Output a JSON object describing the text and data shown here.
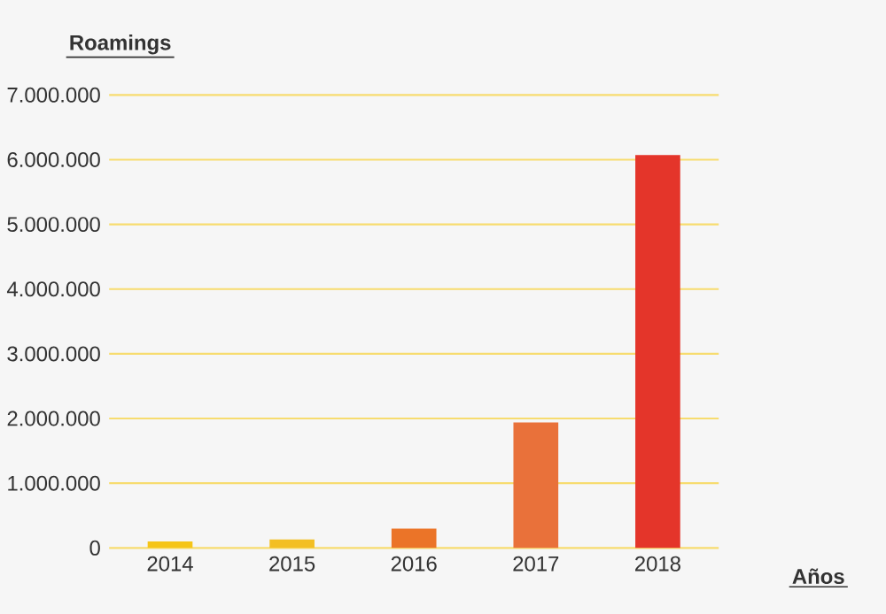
{
  "chart_data": {
    "type": "bar",
    "ylabel": "Roamings",
    "xlabel": "Años",
    "categories": [
      "2014",
      "2015",
      "2016",
      "2017",
      "2018"
    ],
    "values": [
      100000,
      130000,
      300000,
      1940000,
      6070000
    ],
    "colors": [
      "#f5c518",
      "#f3bf22",
      "#eb7428",
      "#e9713a",
      "#e4352a"
    ],
    "ylim": [
      0,
      7000000
    ],
    "yticks": [
      0,
      {
        "value": 1000000,
        "label": "1.000.000"
      },
      {
        "value": 2000000,
        "label": "2.000.000"
      },
      {
        "value": 3000000,
        "label": "3.000.000"
      },
      {
        "value": 4000000,
        "label": "4.000.000"
      },
      {
        "value": 5000000,
        "label": "5.000.000"
      },
      {
        "value": 6000000,
        "label": "6.000.000"
      },
      {
        "value": 7000000,
        "label": "7.000.000"
      }
    ],
    "grid": "y"
  }
}
